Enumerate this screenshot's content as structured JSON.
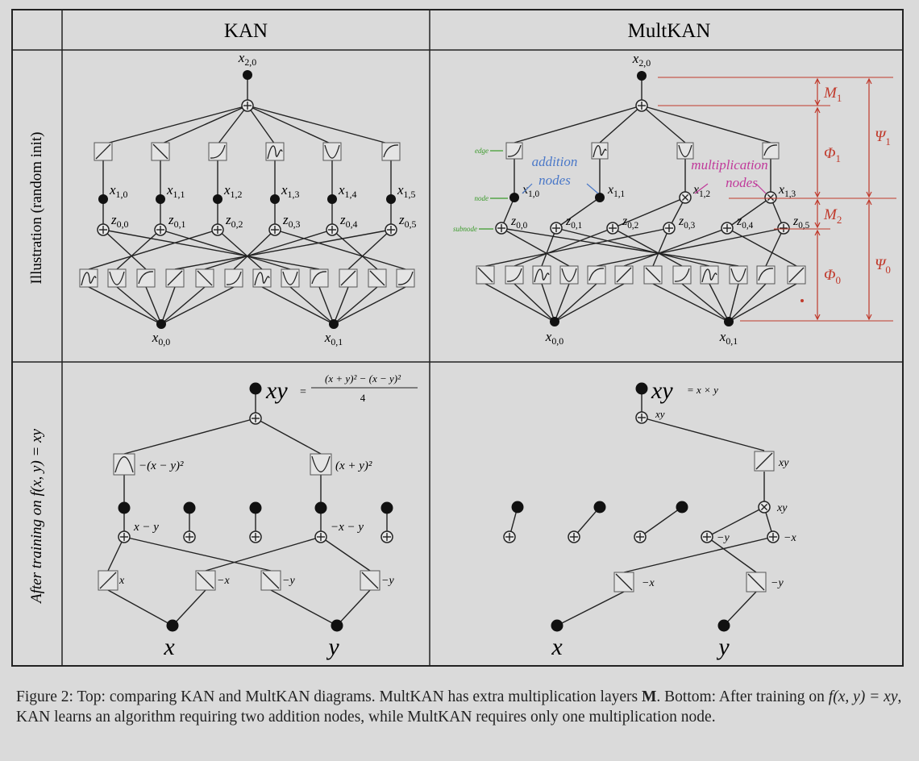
{
  "headers": {
    "kan": "KAN",
    "multkan": "MultKAN"
  },
  "row_labels": {
    "top": "Illustration (random init)",
    "bottom": "After training on f(x, y) = xy"
  },
  "labels": {
    "x20": "x2,0",
    "x1": [
      "x1,0",
      "x1,1",
      "x1,2",
      "x1,3",
      "x1,4",
      "x1,5"
    ],
    "mx1": [
      "x1,0",
      "x1,1",
      "x1,2",
      "x1,3"
    ],
    "z0": [
      "z0,0",
      "z0,1",
      "z0,2",
      "z0,3",
      "z0,4",
      "z0,5"
    ],
    "x0": [
      "x0,0",
      "x0,1"
    ]
  },
  "annotations": {
    "edge": "edge",
    "node": "node",
    "subnode": "subnode",
    "addition_nodes": [
      "addition",
      "nodes"
    ],
    "multiplication_nodes": [
      "multiplication",
      "nodes"
    ]
  },
  "brackets": {
    "M1": "M1",
    "Phi1": "Φ1",
    "Psi1": "Ψ1",
    "M2": "M2",
    "Phi0": "Φ0",
    "Psi0": "Ψ0"
  },
  "kan_trained": {
    "output": "xy",
    "equation_num": "(x + y)² − (x − y)²",
    "equation_den": "4",
    "act_left": "−(x − y)²",
    "act_right": "(x + y)²",
    "node_left": "x − y",
    "node_right": "−x − y",
    "bottom_acts": [
      "x",
      "−x",
      "−y",
      "−y"
    ],
    "inputs": [
      "x",
      "y"
    ]
  },
  "multkan_trained": {
    "output": "xy",
    "equation": "= x × y",
    "sum_label": "xy",
    "act_top": "xy",
    "mult_label": "xy",
    "sub_left": "−y",
    "sub_right": "−x",
    "bottom_acts": [
      "−x",
      "−y"
    ],
    "inputs": [
      "x",
      "y"
    ]
  },
  "caption": {
    "part1": "Figure 2: Top: comparing KAN and MultKAN diagrams. MultKAN has extra multiplication layers ",
    "M": "M",
    "part2": ". Bottom: After training on ",
    "formula": "f(x, y) = xy",
    "part3": ", KAN learns an algorithm requiring two addition nodes, while MultKAN requires only one multiplication node."
  }
}
